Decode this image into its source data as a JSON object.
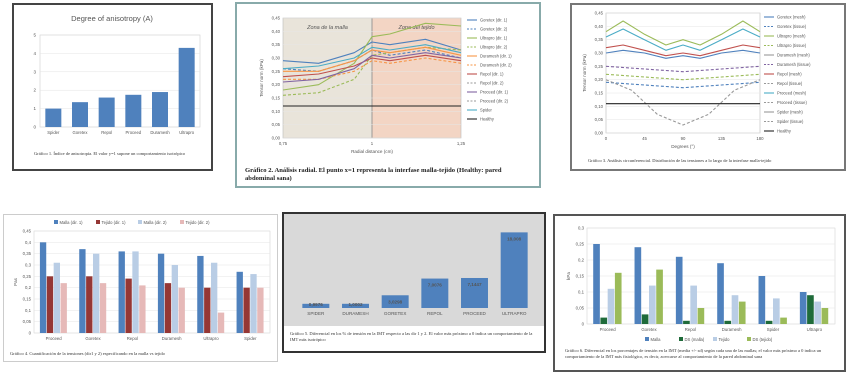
{
  "chart_data": [
    {
      "type": "bar",
      "title": "Degree of anisotropy (A)",
      "categories": [
        "Spider",
        "Goretex",
        "Repol",
        "Proceed",
        "Duramesh",
        "Ultrapro"
      ],
      "values": [
        1.0,
        1.35,
        1.6,
        1.75,
        1.9,
        4.3
      ],
      "ylim": [
        0,
        5
      ],
      "yticks": [
        "0",
        "1",
        "2",
        "3",
        "4",
        "5"
      ],
      "color": "#4f81bd",
      "caption": "Gráfico 1. Índice de anisotropía. El valor y=1 supone un comportamiento isotrópico"
    },
    {
      "type": "line",
      "title": "",
      "xlabel": "Radial distance (cm)",
      "ylabel": "Tensor norm (kPa)",
      "xlim": [
        0.75,
        1.25
      ],
      "ylim": [
        0,
        0.45
      ],
      "xticks": [
        "0,75",
        "1",
        "1,25"
      ],
      "yticks": [
        "0,00",
        "0,05",
        "0,10",
        "0,15",
        "0,20",
        "0,25",
        "0,30",
        "0,35",
        "0,40",
        "0,45"
      ],
      "regions": [
        "Zona de la malla",
        "Zona del tejido"
      ],
      "legend": [
        "Goretex (dir. 1)",
        "Goretex (dir. 2)",
        "Ultrapro (dir. 1)",
        "Ultrapro (dir. 2)",
        "Duramesh (dir. 1)",
        "Duramesh (dir. 2)",
        "Repol (dir. 1)",
        "Repol (dir. 2)",
        "Proceed (dir. 1)",
        "Proceed (dir. 2)",
        "Spider",
        "Healthy"
      ],
      "series": [
        {
          "name": "Goretex (dir. 1)",
          "color": "#4f81bd",
          "dash": false,
          "x": [
            0.75,
            0.85,
            0.95,
            1.0,
            1.05,
            1.15,
            1.25
          ],
          "values": [
            0.29,
            0.28,
            0.32,
            0.36,
            0.35,
            0.37,
            0.33
          ]
        },
        {
          "name": "Goretex (dir. 2)",
          "color": "#4f81bd",
          "dash": true,
          "x": [
            0.75,
            0.85,
            0.95,
            1.0,
            1.05,
            1.15,
            1.25
          ],
          "values": [
            0.26,
            0.25,
            0.29,
            0.33,
            0.31,
            0.33,
            0.3
          ]
        },
        {
          "name": "Ultrapro (dir. 1)",
          "color": "#9bbb59",
          "dash": false,
          "x": [
            0.75,
            0.85,
            0.95,
            1.0,
            1.05,
            1.15,
            1.25
          ],
          "values": [
            0.18,
            0.2,
            0.28,
            0.38,
            0.39,
            0.43,
            0.42
          ]
        },
        {
          "name": "Ultrapro (dir. 2)",
          "color": "#9bbb59",
          "dash": true,
          "x": [
            0.75,
            0.85,
            0.95,
            1.0,
            1.05,
            1.15,
            1.25
          ],
          "values": [
            0.16,
            0.17,
            0.22,
            0.31,
            0.32,
            0.34,
            0.33
          ]
        },
        {
          "name": "Duramesh (dir. 1)",
          "color": "#f79646",
          "dash": false,
          "x": [
            0.75,
            0.85,
            0.95,
            1.0,
            1.05,
            1.15,
            1.25
          ],
          "values": [
            0.25,
            0.25,
            0.29,
            0.33,
            0.32,
            0.34,
            0.31
          ]
        },
        {
          "name": "Duramesh (dir. 2)",
          "color": "#f79646",
          "dash": true,
          "x": [
            0.75,
            0.85,
            0.95,
            1.0,
            1.05,
            1.15,
            1.25
          ],
          "values": [
            0.22,
            0.22,
            0.25,
            0.29,
            0.28,
            0.3,
            0.28
          ]
        },
        {
          "name": "Repol (dir. 1)",
          "color": "#c0504d",
          "dash": false,
          "x": [
            0.75,
            0.85,
            0.95,
            1.0,
            1.05,
            1.15,
            1.25
          ],
          "values": [
            0.23,
            0.24,
            0.27,
            0.3,
            0.29,
            0.31,
            0.29
          ]
        },
        {
          "name": "Proceed (dir. 1)",
          "color": "#8064a2",
          "dash": false,
          "x": [
            0.75,
            0.85,
            0.95,
            1.0,
            1.05,
            1.15,
            1.25
          ],
          "values": [
            0.21,
            0.22,
            0.26,
            0.31,
            0.3,
            0.32,
            0.3
          ]
        },
        {
          "name": "Spider",
          "color": "#4bacc6",
          "dash": false,
          "x": [
            0.75,
            0.85,
            0.95,
            1.0,
            1.05,
            1.15,
            1.25
          ],
          "values": [
            0.26,
            0.27,
            0.3,
            0.34,
            0.33,
            0.35,
            0.32
          ]
        },
        {
          "name": "Healthy",
          "color": "#222222",
          "dash": false,
          "x": [
            0.75,
            1.25
          ],
          "values": [
            0.12,
            0.12
          ]
        }
      ],
      "caption": "Gráfico 2. Análisis radial. El punto x=1 representa la interfase malla-tejido (Healthy: pared abdominal sana)"
    },
    {
      "type": "line",
      "title": "",
      "xlabel": "Degrees (°)",
      "ylabel": "Tensor norm (kPa)",
      "xlim": [
        0,
        180
      ],
      "ylim": [
        0,
        0.45
      ],
      "xticks": [
        "0",
        "45",
        "90",
        "135",
        "180"
      ],
      "yticks": [
        "0,00",
        "0,05",
        "0,10",
        "0,15",
        "0,20",
        "0,25",
        "0,30",
        "0,35",
        "0,40",
        "0,45"
      ],
      "legend": [
        "Goretex (mesh)",
        "Goretex (tissue)",
        "Ultrapro (mesh)",
        "Ultrapro (tissue)",
        "Duramesh (mesh)",
        "Duramesh (tissue)",
        "Repol (mesh)",
        "Repol (tissue)",
        "Proceed (mesh)",
        "Proceed (tissue)",
        "Spider (mesh)",
        "Spider (tissue)",
        "Healthy"
      ],
      "series": [
        {
          "name": "Ultrapro (mesh)",
          "color": "#9bbb59",
          "dash": false,
          "x": [
            0,
            20,
            45,
            70,
            90,
            110,
            135,
            160,
            180
          ],
          "values": [
            0.38,
            0.42,
            0.37,
            0.33,
            0.35,
            0.33,
            0.37,
            0.42,
            0.38
          ]
        },
        {
          "name": "Proceed (mesh)",
          "color": "#4bacc6",
          "dash": false,
          "x": [
            0,
            20,
            45,
            70,
            90,
            110,
            135,
            160,
            180
          ],
          "values": [
            0.36,
            0.39,
            0.35,
            0.31,
            0.33,
            0.31,
            0.35,
            0.39,
            0.36
          ]
        },
        {
          "name": "Repol (mesh)",
          "color": "#c0504d",
          "dash": false,
          "x": [
            0,
            20,
            45,
            70,
            90,
            110,
            135,
            160,
            180
          ],
          "values": [
            0.32,
            0.33,
            0.31,
            0.29,
            0.3,
            0.29,
            0.31,
            0.33,
            0.32
          ]
        },
        {
          "name": "Goretex (mesh)",
          "color": "#4f81bd",
          "dash": false,
          "x": [
            0,
            20,
            45,
            70,
            90,
            110,
            135,
            160,
            180
          ],
          "values": [
            0.3,
            0.31,
            0.3,
            0.28,
            0.29,
            0.28,
            0.3,
            0.31,
            0.3
          ]
        },
        {
          "name": "Duramesh (tissue)",
          "color": "#8064a2",
          "dash": true,
          "x": [
            0,
            45,
            90,
            135,
            180
          ],
          "values": [
            0.25,
            0.24,
            0.23,
            0.24,
            0.25
          ]
        },
        {
          "name": "Ultrapro (tissue)",
          "color": "#9bbb59",
          "dash": true,
          "x": [
            0,
            45,
            90,
            135,
            180
          ],
          "values": [
            0.22,
            0.21,
            0.2,
            0.21,
            0.22
          ]
        },
        {
          "name": "Goretex (tissue)",
          "color": "#4f81bd",
          "dash": true,
          "x": [
            0,
            45,
            90,
            135,
            180
          ],
          "values": [
            0.19,
            0.18,
            0.17,
            0.18,
            0.19
          ]
        },
        {
          "name": "Spider (tissue)",
          "color": "#999999",
          "dash": true,
          "x": [
            0,
            30,
            60,
            90,
            120,
            150,
            180
          ],
          "values": [
            0.2,
            0.16,
            0.07,
            0.03,
            0.07,
            0.16,
            0.2
          ]
        },
        {
          "name": "Healthy",
          "color": "#222222",
          "dash": false,
          "x": [
            0,
            180
          ],
          "values": [
            0.11,
            0.11
          ]
        }
      ],
      "caption": "Gráfico 3. Análisis circunferencial. Distribución de las tensiones a lo largo de la interfase malla-tejido"
    },
    {
      "type": "bar",
      "title": "",
      "ylabel": "Pas",
      "categories": [
        "Proceed",
        "Goretex",
        "Repol",
        "Duramesh",
        "Ultrapro",
        "Spider"
      ],
      "legend": [
        "Malla (dir. 1)",
        "Tejido (dir. 1)",
        "Malla (dir. 2)",
        "Tejido (dir. 2)"
      ],
      "ylim": [
        0,
        0.45
      ],
      "yticks": [
        "0",
        "0,05",
        "0,1",
        "0,15",
        "0,2",
        "0,25",
        "0,3",
        "0,35",
        "0,4",
        "0,45"
      ],
      "series": [
        {
          "name": "Malla (dir. 1)",
          "color": "#4f81bd",
          "values": [
            0.4,
            0.37,
            0.36,
            0.35,
            0.34,
            0.27
          ]
        },
        {
          "name": "Tejido (dir. 1)",
          "color": "#953735",
          "values": [
            0.25,
            0.25,
            0.24,
            0.22,
            0.2,
            0.2
          ]
        },
        {
          "name": "Malla (dir. 2)",
          "color": "#b9cde5",
          "values": [
            0.31,
            0.35,
            0.36,
            0.3,
            0.31,
            0.26
          ]
        },
        {
          "name": "Tejido (dir. 2)",
          "color": "#e6b9b8",
          "values": [
            0.22,
            0.22,
            0.21,
            0.2,
            0.09,
            0.2
          ]
        }
      ],
      "caption": "Gráfico 4. Cuantificación de la tensiones (dir1 y 2) especificando en la malla vs tejido"
    },
    {
      "type": "bar",
      "title": "",
      "categories": [
        "SPIDER",
        "DURAMESH",
        "GORETEX",
        "REPOL",
        "PROCEED",
        "ULTRAPRO"
      ],
      "values": [
        0.9976,
        1.0002,
        3.0298,
        7.0076,
        7.1447,
        18.008
      ],
      "labels": [
        "0,9976",
        "1,0002",
        "3,0298",
        "7,0076",
        "7,1447",
        "18,008"
      ],
      "ylim": [
        0,
        20
      ],
      "color": "#4f81bd",
      "caption": "Gráfico 5. Diferencial en los % de tensión en la IMT respecto a las dir 1 y 2. El valor más próximo a 0 indica un comportamiento de la IMT más isotrópico"
    },
    {
      "type": "bar",
      "title": "",
      "ylabel": "kPa",
      "categories": [
        "Proceed",
        "Goretex",
        "Repol",
        "Duramesh",
        "Spider",
        "Ultrapro"
      ],
      "legend": [
        "Malla",
        "DS (malla)",
        "Tejido",
        "DS (tejido)"
      ],
      "ylim": [
        0,
        0.3
      ],
      "yticks": [
        "0",
        "0,05",
        "0,1",
        "0,15",
        "0,2",
        "0,25",
        "0,3"
      ],
      "series": [
        {
          "name": "Malla",
          "color": "#4f81bd",
          "values": [
            0.25,
            0.24,
            0.21,
            0.19,
            0.15,
            0.1
          ]
        },
        {
          "name": "DS (malla)",
          "color": "#1f6b3a",
          "values": [
            0.02,
            0.03,
            0.01,
            0.01,
            0.01,
            0.09
          ]
        },
        {
          "name": "Tejido",
          "color": "#b9cde5",
          "values": [
            0.11,
            0.12,
            0.12,
            0.09,
            0.08,
            0.07
          ]
        },
        {
          "name": "DS (tejido)",
          "color": "#9bbb59",
          "values": [
            0.16,
            0.17,
            0.05,
            0.07,
            0.02,
            0.05
          ]
        }
      ],
      "caption": "Gráfico 6. Diferencial en los porcentajes de tensión en la IMT (media +/- sd) según cada una de las mallas; el valor más próximo a 0 indica un comportamiento de la IMT más fisiológico, es decir, acercarse al comportamiento de la pared abdominal sana"
    }
  ]
}
